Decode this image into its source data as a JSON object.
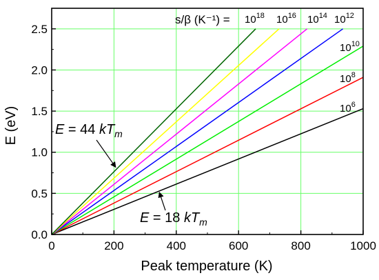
{
  "chart_data": {
    "type": "line",
    "xlabel": "Peak temperature (K)",
    "ylabel": "E (eV)",
    "xlim": [
      0,
      1000
    ],
    "ylim": [
      0,
      2.75
    ],
    "xticks": [
      0,
      200,
      400,
      600,
      800,
      1000
    ],
    "yticks": [
      0.0,
      0.5,
      1.0,
      1.5,
      2.0,
      2.5
    ],
    "xtick_labels": [
      "0",
      "200",
      "400",
      "600",
      "800",
      "1000"
    ],
    "ytick_labels": [
      "0.0",
      "0.5",
      "1.0",
      "1.5",
      "2.0",
      "2.5"
    ],
    "grid": true,
    "grid_color": "#66ff66",
    "legend_title": "s/β (K⁻¹) =",
    "series": [
      {
        "name": "10^6",
        "base": "10",
        "exp": "6",
        "color": "#000000",
        "x": [
          0,
          1000
        ],
        "y": [
          0,
          1.53
        ]
      },
      {
        "name": "10^8",
        "base": "10",
        "exp": "8",
        "color": "#ff0000",
        "x": [
          0,
          1000
        ],
        "y": [
          0,
          1.91
        ]
      },
      {
        "name": "10^10",
        "base": "10",
        "exp": "10",
        "color": "#00ee00",
        "x": [
          0,
          1000
        ],
        "y": [
          0,
          2.29
        ]
      },
      {
        "name": "10^12",
        "base": "10",
        "exp": "12",
        "color": "#0000ff",
        "x": [
          0,
          935
        ],
        "y": [
          0,
          2.5
        ]
      },
      {
        "name": "10^14",
        "base": "10",
        "exp": "14",
        "color": "#ff00ff",
        "x": [
          0,
          820
        ],
        "y": [
          0,
          2.5
        ]
      },
      {
        "name": "10^16",
        "base": "10",
        "exp": "16",
        "color": "#ffff00",
        "x": [
          0,
          730
        ],
        "y": [
          0,
          2.5
        ]
      },
      {
        "name": "10^18",
        "base": "10",
        "exp": "18",
        "color": "#006400",
        "x": [
          0,
          655
        ],
        "y": [
          0,
          2.5
        ]
      }
    ],
    "annotations": [
      {
        "id": "upper",
        "text_prefix": "E",
        "text_mid": " = 44 ",
        "text_k": "kT",
        "text_sub": "m",
        "arrow_to_data": [
          210,
          0.8
        ]
      },
      {
        "id": "lower",
        "text_prefix": "E",
        "text_mid": " = 18 ",
        "text_k": "kT",
        "text_sub": "m",
        "arrow_to_data": [
          350,
          0.53
        ]
      }
    ]
  }
}
